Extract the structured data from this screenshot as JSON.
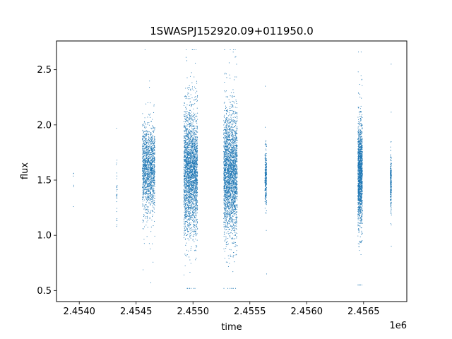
{
  "chart_data": {
    "type": "scatter",
    "title": "1SWASPJ152920.09+011950.0",
    "xlabel": "time",
    "ylabel": "flux",
    "x_offset_label": "1e6",
    "x_scale": 1000000,
    "xlim": [
      2.4538,
      2.45688
    ],
    "ylim": [
      0.4,
      2.76
    ],
    "x_ticks": [
      2.454,
      2.4545,
      2.455,
      2.4555,
      2.456,
      2.4565
    ],
    "x_tick_labels": [
      "2.4540",
      "2.4545",
      "2.4550",
      "2.4555",
      "2.4560",
      "2.4565"
    ],
    "y_ticks": [
      0.5,
      1.0,
      1.5,
      2.0,
      2.5
    ],
    "y_tick_labels": [
      "0.5",
      "1.0",
      "1.5",
      "2.0",
      "2.5"
    ],
    "grid": false,
    "marker_color": "#1f77b4",
    "series": [
      {
        "clusters": [
          {
            "x_center": 2.45395,
            "x_width": 4e-06,
            "y_mean": 1.5,
            "y_sd": 0.15,
            "y_min": 1.26,
            "y_max": 1.68,
            "count": 6
          },
          {
            "x_center": 2.45433,
            "x_width": 8e-06,
            "y_mean": 1.45,
            "y_sd": 0.2,
            "y_min": 1.08,
            "y_max": 1.97,
            "count": 30
          },
          {
            "x_center": 2.45461,
            "x_width": 0.00011,
            "y_mean": 1.6,
            "y_sd": 0.18,
            "y_min": 0.57,
            "y_max": 2.68,
            "count": 1500
          },
          {
            "x_center": 2.45498,
            "x_width": 0.00012,
            "y_mean": 1.58,
            "y_sd": 0.27,
            "y_min": 0.52,
            "y_max": 2.68,
            "count": 2600
          },
          {
            "x_center": 2.45533,
            "x_width": 0.00012,
            "y_mean": 1.56,
            "y_sd": 0.27,
            "y_min": 0.52,
            "y_max": 2.68,
            "count": 2600
          },
          {
            "x_center": 2.45564,
            "x_width": 1.5e-05,
            "y_mean": 1.52,
            "y_sd": 0.12,
            "y_min": 0.65,
            "y_max": 2.35,
            "count": 300
          },
          {
            "x_center": 2.45647,
            "x_width": 4e-05,
            "y_mean": 1.55,
            "y_sd": 0.22,
            "y_min": 0.55,
            "y_max": 2.66,
            "count": 1500
          },
          {
            "x_center": 2.45674,
            "x_width": 1e-05,
            "y_mean": 1.48,
            "y_sd": 0.13,
            "y_min": 0.9,
            "y_max": 2.55,
            "count": 250
          }
        ]
      }
    ]
  }
}
